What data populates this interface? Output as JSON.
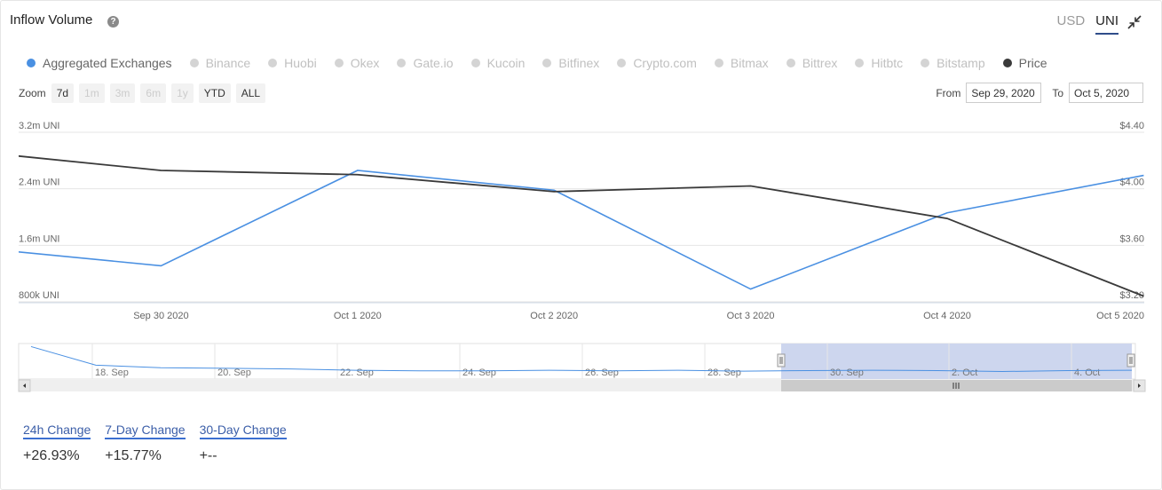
{
  "header": {
    "title": "Inflow Volume",
    "help_icon": "question-circle-icon"
  },
  "units": {
    "options": [
      "USD",
      "UNI"
    ],
    "active": "UNI",
    "collapse_icon": "collapse-arrows-icon"
  },
  "legend": [
    {
      "label": "Aggregated Exchanges",
      "color": "#4a90e2",
      "active": true
    },
    {
      "label": "Binance",
      "active": false
    },
    {
      "label": "Huobi",
      "active": false
    },
    {
      "label": "Okex",
      "active": false
    },
    {
      "label": "Gate.io",
      "active": false
    },
    {
      "label": "Kucoin",
      "active": false
    },
    {
      "label": "Bitfinex",
      "active": false
    },
    {
      "label": "Crypto.com",
      "active": false
    },
    {
      "label": "Bitmax",
      "active": false
    },
    {
      "label": "Bittrex",
      "active": false
    },
    {
      "label": "Hitbtc",
      "active": false
    },
    {
      "label": "Bitstamp",
      "active": false
    },
    {
      "label": "Price",
      "color": "#3a3a3a",
      "active": true
    }
  ],
  "zoom": {
    "label": "Zoom",
    "buttons": [
      {
        "label": "7d",
        "enabled": true
      },
      {
        "label": "1m",
        "enabled": false
      },
      {
        "label": "3m",
        "enabled": false
      },
      {
        "label": "6m",
        "enabled": false
      },
      {
        "label": "1y",
        "enabled": false
      },
      {
        "label": "YTD",
        "enabled": true
      },
      {
        "label": "ALL",
        "enabled": true
      }
    ]
  },
  "range": {
    "from_label": "From",
    "from": "Sep 29, 2020",
    "to_label": "To",
    "to": "Oct 5, 2020"
  },
  "chart_data": {
    "type": "line",
    "x": [
      "Sep 29 2020",
      "Sep 30 2020",
      "Oct 1 2020",
      "Oct 2 2020",
      "Oct 3 2020",
      "Oct 4 2020",
      "Oct 5 2020"
    ],
    "x_tick_labels": [
      "Sep 30 2020",
      "Oct 1 2020",
      "Oct 2 2020",
      "Oct 3 2020",
      "Oct 4 2020",
      "Oct 5 2020"
    ],
    "series": [
      {
        "name": "Aggregated Exchanges",
        "axis": "left",
        "color": "#4a90e2",
        "values": [
          1580000,
          1310000,
          2660000,
          2380000,
          980000,
          2060000,
          2590000
        ]
      },
      {
        "name": "Price",
        "axis": "right",
        "color": "#3a3a3a",
        "values": [
          4.27,
          4.13,
          4.1,
          3.98,
          4.02,
          3.79,
          3.24
        ]
      }
    ],
    "y_left": {
      "ticks": [
        "3.2m UNI",
        "2.4m UNI",
        "1.6m UNI",
        "800k UNI"
      ],
      "tick_values": [
        3200000,
        2400000,
        1600000,
        800000
      ],
      "range": [
        800000,
        3200000
      ]
    },
    "y_right": {
      "ticks": [
        "$4.40",
        "$4.00",
        "$3.60",
        "$3.20"
      ],
      "tick_values": [
        4.4,
        4.0,
        3.6,
        3.2
      ],
      "range": [
        3.2,
        4.4
      ]
    },
    "grid": true
  },
  "navigator": {
    "labels": [
      "18. Sep",
      "20. Sep",
      "22. Sep",
      "24. Sep",
      "26. Sep",
      "28. Sep",
      "30. Sep",
      "2. Oct",
      "4. Oct"
    ],
    "series_values": [
      4.8,
      1.9,
      1.5,
      1.4,
      1.3,
      1.1,
      1.0,
      1.0,
      1.1,
      1.0,
      1.1,
      0.95,
      1.05,
      1.1,
      1.05,
      0.9,
      1.05,
      1.1
    ]
  },
  "changes": [
    {
      "label": "24h Change",
      "value": "+26.93%"
    },
    {
      "label": "7-Day Change",
      "value": "+15.77%"
    },
    {
      "label": "30-Day Change",
      "value": "+--"
    }
  ]
}
